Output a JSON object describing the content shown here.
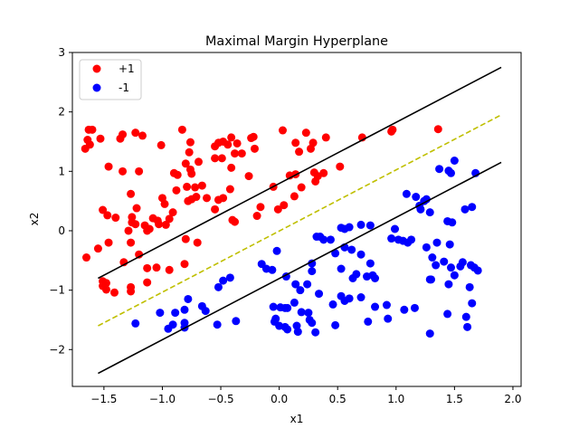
{
  "chart_data": {
    "type": "scatter",
    "title": "Maximal Margin Hyperplane",
    "xlabel": "x1",
    "ylabel": "x2",
    "xlim": [
      -1.77,
      2.07
    ],
    "ylim": [
      -2.62,
      3.0
    ],
    "xticks": [
      -1.5,
      -1.0,
      -0.5,
      0.0,
      0.5,
      1.0,
      1.5,
      2.0
    ],
    "xtick_labels": [
      "−1.5",
      "−1.0",
      "−0.5",
      "0.0",
      "0.5",
      "1.0",
      "1.5",
      "2.0"
    ],
    "yticks": [
      -2,
      -1,
      0,
      1,
      2,
      3
    ],
    "ytick_labels": [
      "−2",
      "−1",
      "0",
      "1",
      "2",
      "3"
    ],
    "grid": false,
    "legend": {
      "placement": "top-left",
      "entries": [
        "+1",
        "-1"
      ]
    },
    "series": [
      {
        "name": "+1",
        "color": "#ff0000",
        "points": [
          [
            -1.63,
            1.7
          ],
          [
            -1.6,
            1.7
          ],
          [
            -1.64,
            1.53
          ],
          [
            -1.53,
            1.55
          ],
          [
            -1.66,
            1.38
          ],
          [
            -1.62,
            1.45
          ],
          [
            -1.36,
            1.55
          ],
          [
            -1.34,
            1.62
          ],
          [
            -1.23,
            1.65
          ],
          [
            -1.17,
            1.6
          ],
          [
            -1.01,
            1.44
          ],
          [
            -0.83,
            1.7
          ],
          [
            -0.76,
            1.49
          ],
          [
            -0.55,
            1.42
          ],
          [
            -0.52,
            1.48
          ],
          [
            -0.48,
            1.5
          ],
          [
            -0.44,
            1.45
          ],
          [
            -0.41,
            1.57
          ],
          [
            -0.36,
            1.47
          ],
          [
            -0.32,
            1.3
          ],
          [
            -0.38,
            1.3
          ],
          [
            -0.22,
            1.58
          ],
          [
            -0.24,
            1.56
          ],
          [
            0.03,
            1.69
          ],
          [
            0.14,
            1.48
          ],
          [
            0.23,
            1.65
          ],
          [
            0.29,
            1.48
          ],
          [
            0.27,
            1.38
          ],
          [
            0.4,
            1.57
          ],
          [
            0.71,
            1.57
          ],
          [
            0.96,
            1.67
          ],
          [
            0.97,
            1.7
          ],
          [
            1.36,
            1.71
          ],
          [
            0.17,
            1.33
          ],
          [
            -0.77,
            1.32
          ],
          [
            -0.8,
            1.13
          ],
          [
            -0.76,
            1.03
          ],
          [
            -0.9,
            0.97
          ],
          [
            -0.87,
            0.94
          ],
          [
            -0.75,
            0.96
          ],
          [
            -0.41,
            1.06
          ],
          [
            -0.55,
            1.22
          ],
          [
            -0.49,
            1.22
          ],
          [
            -0.69,
            1.16
          ],
          [
            -1.46,
            1.08
          ],
          [
            -1.34,
            1.0
          ],
          [
            -1.2,
            1.0
          ],
          [
            -1.51,
            0.35
          ],
          [
            -1.47,
            0.26
          ],
          [
            -1.27,
            0.62
          ],
          [
            -1.26,
            0.23
          ],
          [
            -1.22,
            0.38
          ],
          [
            -1.08,
            0.21
          ],
          [
            -1.04,
            0.17
          ],
          [
            -1.0,
            0.55
          ],
          [
            -0.98,
            0.45
          ],
          [
            -0.88,
            0.68
          ],
          [
            -0.79,
            0.74
          ],
          [
            -0.72,
            0.73
          ],
          [
            -0.66,
            0.76
          ],
          [
            -0.78,
            0.5
          ],
          [
            -0.71,
            0.57
          ],
          [
            -0.62,
            0.55
          ],
          [
            -0.52,
            0.52
          ],
          [
            -0.48,
            0.55
          ],
          [
            -0.42,
            0.7
          ],
          [
            -0.26,
            0.92
          ],
          [
            -0.21,
            1.38
          ],
          [
            -0.19,
            0.25
          ],
          [
            -0.4,
            0.18
          ],
          [
            -0.38,
            0.15
          ],
          [
            -0.55,
            0.36
          ],
          [
            -0.75,
            0.53
          ],
          [
            -0.91,
            0.31
          ],
          [
            -0.94,
            0.2
          ],
          [
            -0.97,
            0.1
          ],
          [
            -1.03,
            0.11
          ],
          [
            -1.11,
            0.03
          ],
          [
            -1.13,
            0.0
          ],
          [
            -1.15,
            0.09
          ],
          [
            -1.23,
            0.11
          ],
          [
            -1.26,
            0.14
          ],
          [
            -1.29,
            0.0
          ],
          [
            -1.4,
            0.22
          ],
          [
            -1.46,
            -0.2
          ],
          [
            -1.55,
            -0.3
          ],
          [
            -1.65,
            -0.45
          ],
          [
            -1.2,
            -0.4
          ],
          [
            -1.13,
            -0.63
          ],
          [
            -1.05,
            -0.62
          ],
          [
            -0.94,
            -0.66
          ],
          [
            -0.81,
            -0.56
          ],
          [
            -0.8,
            -0.14
          ],
          [
            -0.7,
            -0.2
          ],
          [
            -1.27,
            -0.2
          ],
          [
            -1.33,
            -0.53
          ],
          [
            -1.27,
            -0.95
          ],
          [
            -1.27,
            -1.02
          ],
          [
            -1.13,
            -0.87
          ],
          [
            -1.48,
            -0.88
          ],
          [
            -1.51,
            -0.93
          ],
          [
            -1.48,
            -0.99
          ],
          [
            -1.51,
            -0.85
          ],
          [
            -1.41,
            -1.04
          ],
          [
            -0.16,
            0.4
          ],
          [
            -0.05,
            0.74
          ],
          [
            -0.01,
            0.36
          ],
          [
            0.04,
            0.43
          ],
          [
            0.14,
            0.95
          ],
          [
            0.13,
            0.58
          ],
          [
            0.19,
            0.73
          ],
          [
            0.3,
            0.98
          ],
          [
            0.38,
            0.97
          ],
          [
            0.52,
            1.08
          ],
          [
            0.09,
            0.93
          ],
          [
            0.31,
            0.83
          ],
          [
            0.33,
            0.92
          ]
        ]
      },
      {
        "name": "-1",
        "color": "#0000ff",
        "points": [
          [
            1.37,
            1.04
          ],
          [
            1.45,
            1.01
          ],
          [
            1.47,
            0.97
          ],
          [
            1.5,
            1.18
          ],
          [
            1.68,
            0.97
          ],
          [
            1.09,
            0.62
          ],
          [
            1.17,
            0.57
          ],
          [
            1.2,
            0.42
          ],
          [
            1.21,
            0.36
          ],
          [
            1.24,
            0.5
          ],
          [
            1.26,
            0.53
          ],
          [
            1.29,
            0.31
          ],
          [
            1.44,
            0.16
          ],
          [
            1.48,
            0.14
          ],
          [
            1.59,
            0.36
          ],
          [
            1.65,
            0.4
          ],
          [
            0.99,
            0.03
          ],
          [
            0.96,
            -0.13
          ],
          [
            1.02,
            -0.15
          ],
          [
            1.06,
            -0.17
          ],
          [
            1.1,
            -0.2
          ],
          [
            1.13,
            -0.15
          ],
          [
            1.26,
            -0.28
          ],
          [
            1.35,
            -0.2
          ],
          [
            1.46,
            -0.23
          ],
          [
            1.31,
            -0.45
          ],
          [
            1.34,
            -0.58
          ],
          [
            1.41,
            -0.52
          ],
          [
            1.47,
            -0.62
          ],
          [
            1.5,
            -0.75
          ],
          [
            1.45,
            -0.9
          ],
          [
            1.29,
            -0.82
          ],
          [
            1.3,
            -0.82
          ],
          [
            1.55,
            -0.6
          ],
          [
            1.57,
            -0.53
          ],
          [
            1.64,
            -0.58
          ],
          [
            1.67,
            -0.62
          ],
          [
            1.7,
            -0.67
          ],
          [
            1.63,
            -0.95
          ],
          [
            1.65,
            -1.22
          ],
          [
            1.6,
            -1.45
          ],
          [
            1.61,
            -1.62
          ],
          [
            1.44,
            -1.4
          ],
          [
            1.29,
            -1.73
          ],
          [
            1.07,
            -1.33
          ],
          [
            1.16,
            -1.3
          ],
          [
            0.78,
            0.09
          ],
          [
            0.7,
            0.1
          ],
          [
            0.6,
            0.06
          ],
          [
            0.56,
            0.03
          ],
          [
            0.53,
            0.05
          ],
          [
            0.56,
            -0.28
          ],
          [
            0.62,
            -0.32
          ],
          [
            0.7,
            -0.4
          ],
          [
            0.78,
            -0.55
          ],
          [
            0.8,
            -0.75
          ],
          [
            0.82,
            -0.8
          ],
          [
            0.75,
            -0.77
          ],
          [
            0.66,
            -0.73
          ],
          [
            0.63,
            -0.8
          ],
          [
            0.53,
            -0.64
          ],
          [
            0.48,
            -0.38
          ],
          [
            0.44,
            -0.15
          ],
          [
            0.38,
            -0.15
          ],
          [
            0.35,
            -0.1
          ],
          [
            0.32,
            -0.1
          ],
          [
            0.28,
            -0.55
          ],
          [
            0.28,
            -0.68
          ],
          [
            0.24,
            -0.9
          ],
          [
            0.14,
            -0.9
          ],
          [
            0.18,
            -1.0
          ],
          [
            0.13,
            -1.21
          ],
          [
            0.07,
            -1.3
          ],
          [
            0.19,
            -1.37
          ],
          [
            0.25,
            -1.38
          ],
          [
            0.26,
            -1.5
          ],
          [
            0.28,
            -1.55
          ],
          [
            0.31,
            -1.71
          ],
          [
            0.34,
            -1.06
          ],
          [
            0.46,
            -1.24
          ],
          [
            0.53,
            -1.1
          ],
          [
            0.56,
            -1.18
          ],
          [
            0.6,
            -1.14
          ],
          [
            0.7,
            -1.12
          ],
          [
            0.82,
            -1.28
          ],
          [
            0.92,
            -1.25
          ],
          [
            0.93,
            -1.48
          ],
          [
            0.76,
            -1.53
          ],
          [
            0.48,
            -1.59
          ],
          [
            0.15,
            -1.6
          ],
          [
            0.07,
            -1.66
          ],
          [
            -0.03,
            -1.48
          ],
          [
            -0.04,
            -1.53
          ],
          [
            0.0,
            -1.6
          ],
          [
            0.05,
            -1.62
          ],
          [
            -0.05,
            -1.28
          ],
          [
            0.01,
            -1.29
          ],
          [
            0.05,
            -1.3
          ],
          [
            -0.06,
            -0.66
          ],
          [
            -0.11,
            -0.64
          ],
          [
            -0.15,
            -0.56
          ],
          [
            -0.02,
            -0.34
          ],
          [
            0.06,
            -0.77
          ],
          [
            -0.42,
            -0.79
          ],
          [
            -0.48,
            -0.84
          ],
          [
            -0.52,
            -0.95
          ],
          [
            -0.63,
            -1.35
          ],
          [
            -0.66,
            -1.27
          ],
          [
            -0.53,
            -1.58
          ],
          [
            -0.37,
            -1.52
          ],
          [
            -0.78,
            -1.15
          ],
          [
            -0.81,
            -1.33
          ],
          [
            -0.81,
            -1.55
          ],
          [
            -0.81,
            -1.63
          ],
          [
            -0.91,
            -1.58
          ],
          [
            -0.95,
            -1.65
          ],
          [
            -1.02,
            -1.38
          ],
          [
            -0.89,
            -1.38
          ],
          [
            -1.23,
            -1.56
          ],
          [
            0.16,
            -1.7
          ]
        ]
      }
    ],
    "lines": [
      {
        "role": "margin",
        "color": "#000000",
        "dash": "solid",
        "x": [
          -1.55,
          1.9
        ],
        "y": [
          -0.8,
          2.75
        ]
      },
      {
        "role": "hyperplane",
        "color": "#bfbf00",
        "dash": "dashed",
        "x": [
          -1.55,
          1.9
        ],
        "y": [
          -1.6,
          1.95
        ]
      },
      {
        "role": "margin",
        "color": "#000000",
        "dash": "solid",
        "x": [
          -1.55,
          1.9
        ],
        "y": [
          -2.4,
          1.15
        ]
      }
    ]
  }
}
